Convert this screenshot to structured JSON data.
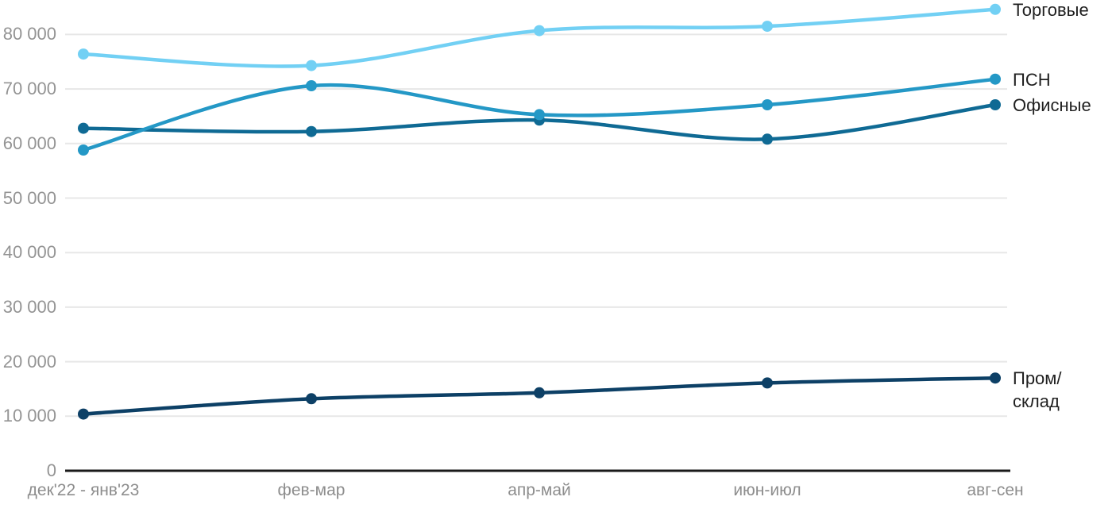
{
  "chart_data": {
    "type": "line",
    "title": "",
    "xlabel": "",
    "ylabel": "",
    "categories": [
      "дек'22 - янв'23",
      "фев-мар",
      "апр-май",
      "июн-июл",
      "авг-сен"
    ],
    "series": [
      {
        "name": "Торговые",
        "color": "#72d0f4",
        "values": [
          76400,
          74300,
          80700,
          81500,
          84600
        ]
      },
      {
        "name": "ПСН",
        "color": "#2498c6",
        "values": [
          58800,
          70600,
          65300,
          67100,
          71800
        ]
      },
      {
        "name": "Офисные",
        "color": "#0f6a94",
        "values": [
          62800,
          62200,
          64300,
          60800,
          67100
        ]
      },
      {
        "name": "Пром/склад",
        "color": "#0d4066",
        "values": [
          10400,
          13200,
          14300,
          16100,
          17000
        ]
      }
    ],
    "y_ticks": [
      0,
      10000,
      20000,
      30000,
      40000,
      50000,
      60000,
      70000,
      80000
    ],
    "y_tick_labels": [
      "0",
      "10 000",
      "20 000",
      "30 000",
      "40 000",
      "50 000",
      "60 000",
      "70 000",
      "80 000"
    ],
    "ylim": [
      0,
      85000
    ],
    "grid": "horizontal",
    "legend_position": "right-end-of-lines",
    "line_style": "smooth-with-point-markers",
    "colors": {
      "grid": "#e7e7e7",
      "axis": "#1a1a1a",
      "y_tick_text": "#949494",
      "x_tick_text": "#8d8d8d",
      "series_label_text": "#1f1f1f",
      "background": "#ffffff"
    }
  }
}
